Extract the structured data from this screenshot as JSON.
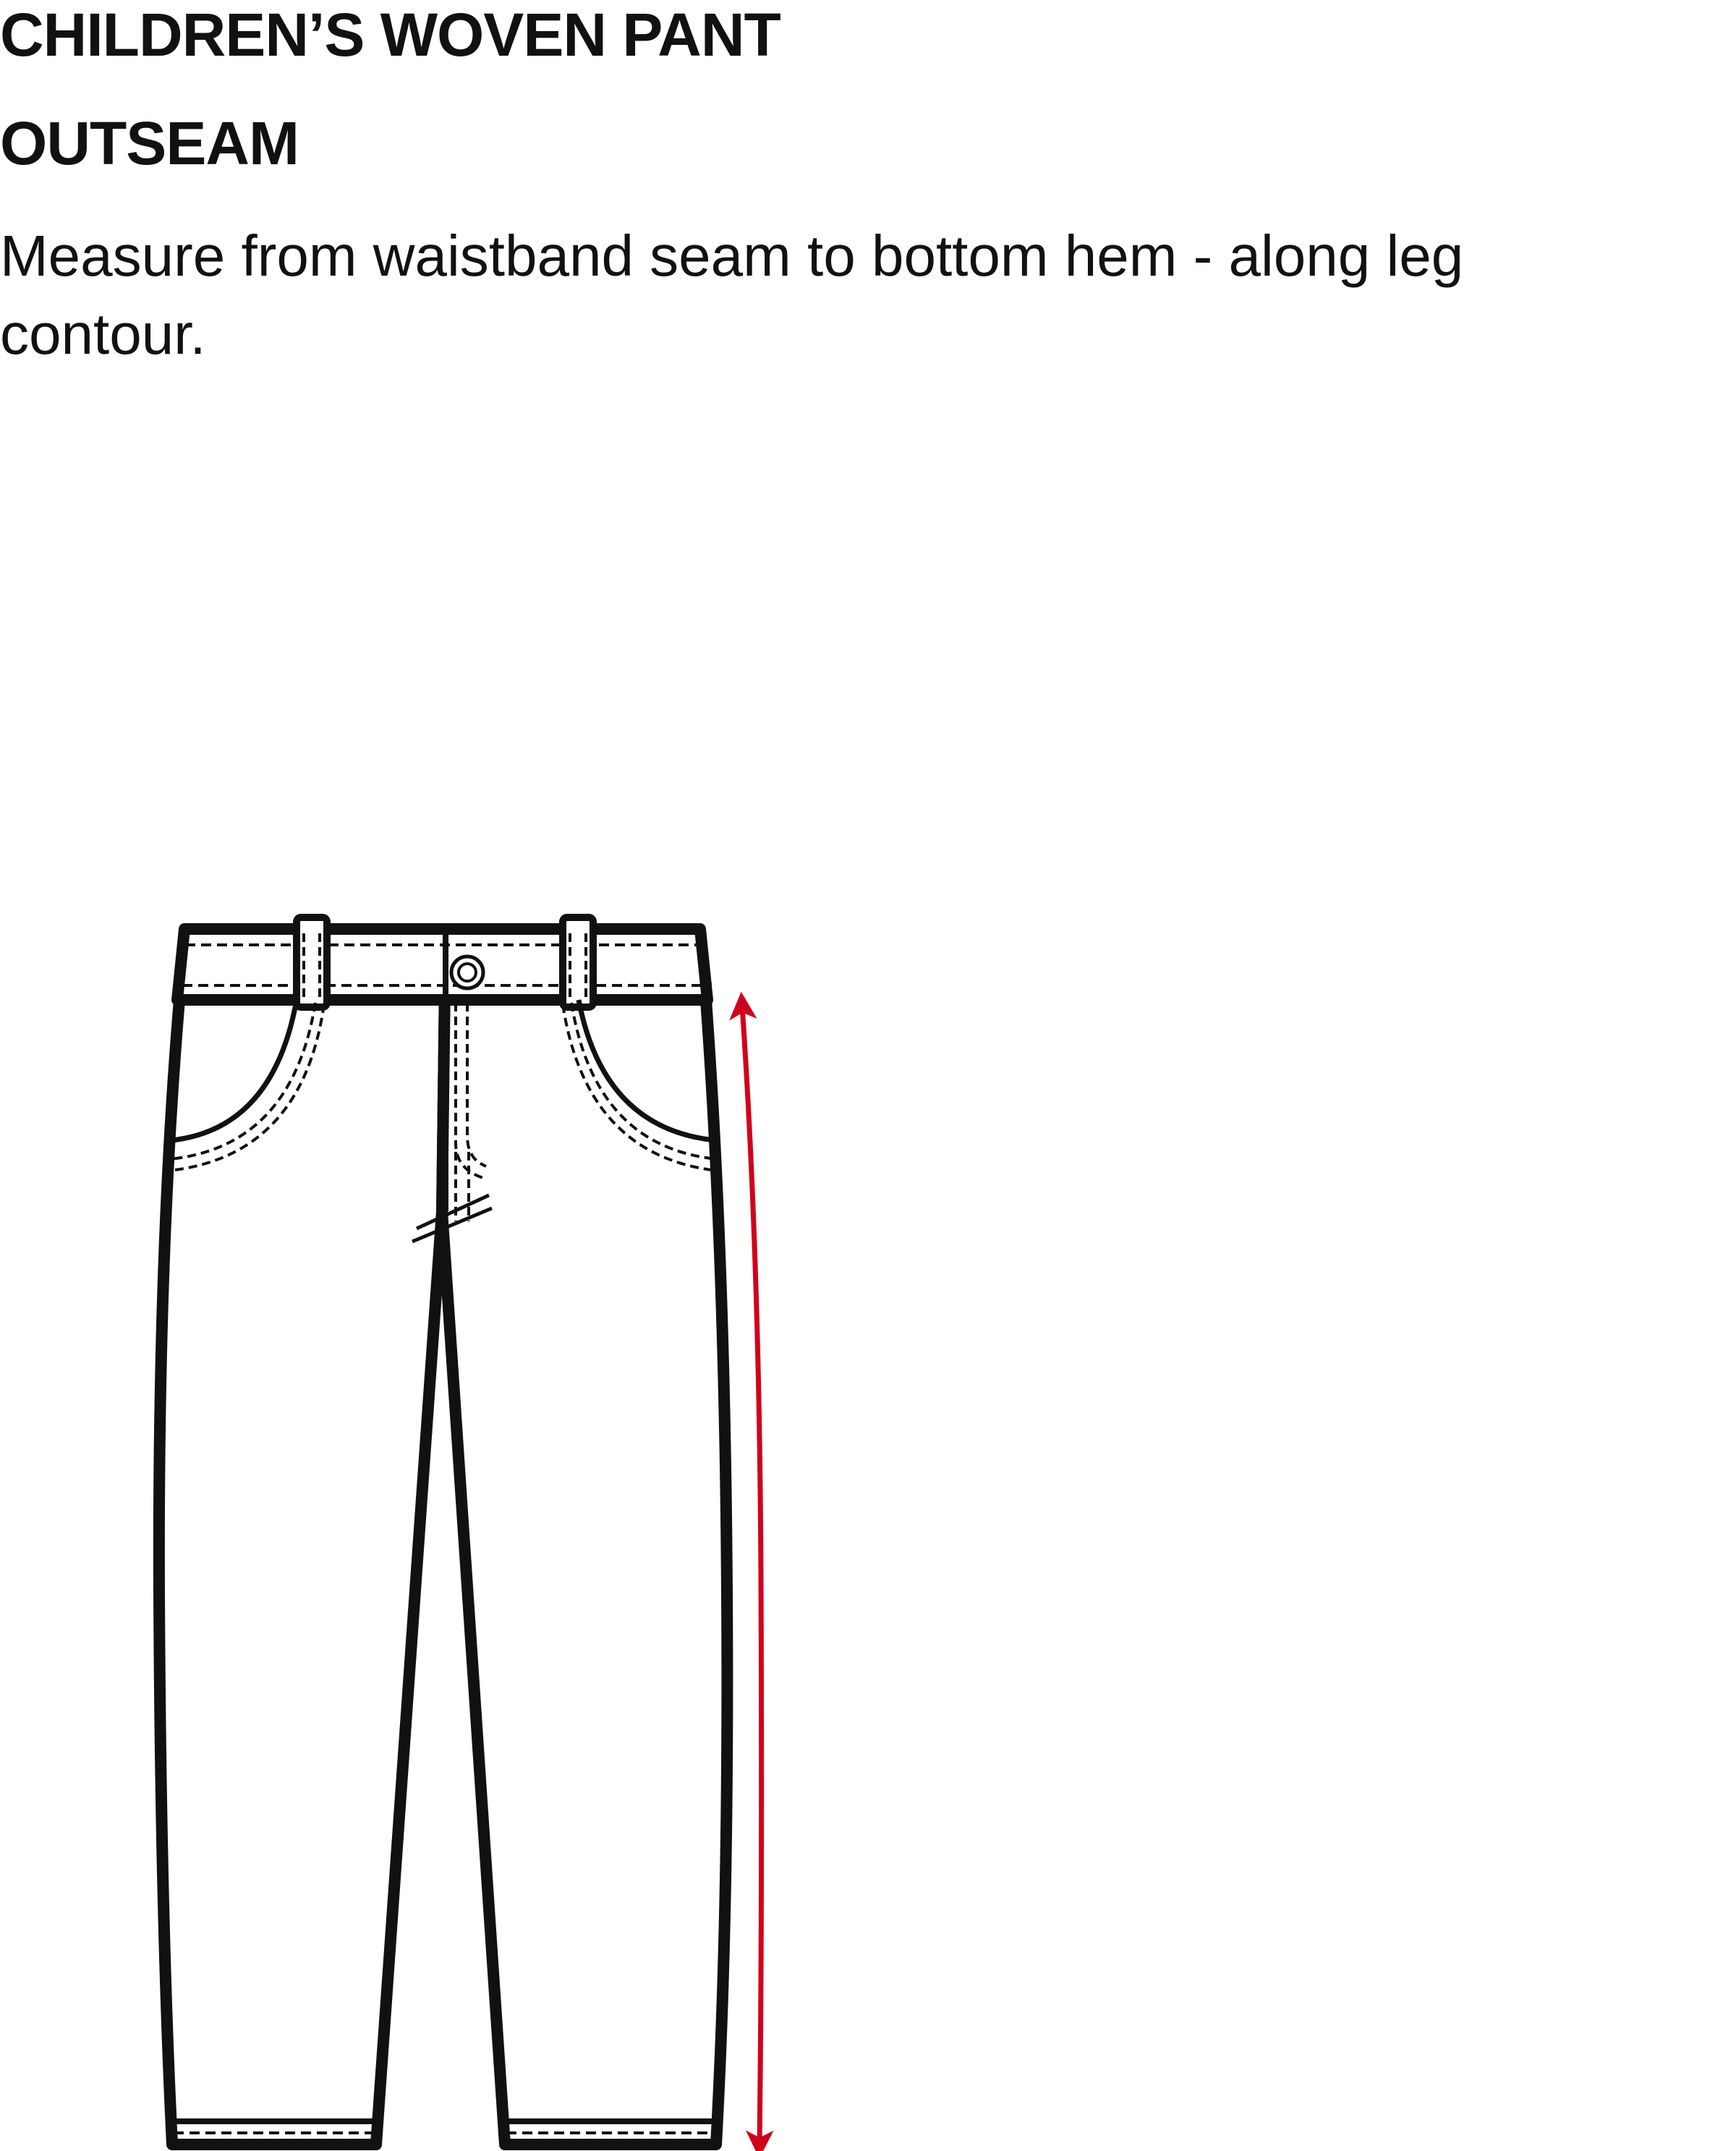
{
  "header": {
    "garment": "CHILDREN’S WOVEN PANT",
    "measurement": "OUTSEAM",
    "instruction": "Measure from waistband seam to bottom hem - along leg contour."
  },
  "diagram": {
    "subject": "pants-flat-sketch",
    "measure_line_color": "#d0021b",
    "outline_color": "#111111",
    "measure_icon": "double-headed-arrow-icon"
  }
}
